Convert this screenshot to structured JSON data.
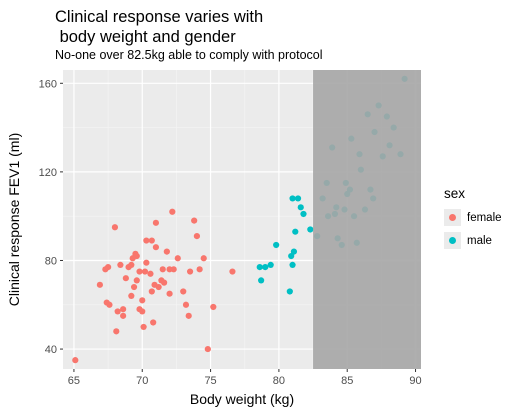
{
  "chart_data": {
    "type": "scatter",
    "title_lines": [
      "Clinical response varies with",
      " body weight and gender"
    ],
    "subtitle": "No-one over 82.5kg able to comply with protocol",
    "xlabel": "Body weight (kg)",
    "ylabel": "Clinical response FEV1 (ml)",
    "xlim": [
      64.2,
      90.4
    ],
    "ylim": [
      31,
      166
    ],
    "xticks": [
      65,
      70,
      75,
      80,
      85,
      90
    ],
    "yticks": [
      40,
      80,
      120,
      160
    ],
    "grid": true,
    "shaded_region": {
      "x_from": 82.5,
      "description_visible": false
    },
    "legend": {
      "title": "sex",
      "position": "right",
      "entries": [
        {
          "label": "female",
          "color": "#F8766D"
        },
        {
          "label": "male",
          "color": "#00BFC4"
        }
      ]
    },
    "series": [
      {
        "name": "female",
        "color": "#F8766D",
        "points": [
          [
            65.1,
            35
          ],
          [
            66.9,
            69
          ],
          [
            67.3,
            76
          ],
          [
            67.5,
            77
          ],
          [
            67.4,
            61
          ],
          [
            67.6,
            60
          ],
          [
            68.0,
            95
          ],
          [
            68.1,
            48
          ],
          [
            68.2,
            57
          ],
          [
            68.6,
            58
          ],
          [
            68.4,
            78
          ],
          [
            68.6,
            55
          ],
          [
            68.8,
            72
          ],
          [
            69.0,
            77
          ],
          [
            69.2,
            78
          ],
          [
            69.3,
            81
          ],
          [
            69.5,
            83
          ],
          [
            69.6,
            82
          ],
          [
            69.2,
            64
          ],
          [
            69.4,
            68
          ],
          [
            69.6,
            71
          ],
          [
            69.8,
            58
          ],
          [
            70.0,
            57
          ],
          [
            70.1,
            50
          ],
          [
            70.0,
            62
          ],
          [
            70.2,
            75
          ],
          [
            69.8,
            75
          ],
          [
            70.3,
            79
          ],
          [
            70.3,
            89
          ],
          [
            70.7,
            89
          ],
          [
            70.6,
            74
          ],
          [
            70.7,
            66
          ],
          [
            70.9,
            69
          ],
          [
            70.8,
            52
          ],
          [
            71.0,
            97
          ],
          [
            71.0,
            86
          ],
          [
            71.2,
            68
          ],
          [
            71.4,
            71
          ],
          [
            71.5,
            76
          ],
          [
            71.6,
            70
          ],
          [
            71.8,
            84
          ],
          [
            72.0,
            76
          ],
          [
            72.3,
            76
          ],
          [
            72.2,
            102
          ],
          [
            72.0,
            65
          ],
          [
            72.6,
            81
          ],
          [
            73.0,
            66
          ],
          [
            73.2,
            60
          ],
          [
            73.4,
            55
          ],
          [
            73.5,
            75
          ],
          [
            73.8,
            98
          ],
          [
            74.0,
            91
          ],
          [
            74.2,
            76
          ],
          [
            74.5,
            81
          ],
          [
            74.8,
            40
          ],
          [
            75.2,
            59
          ],
          [
            76.6,
            75
          ]
        ]
      },
      {
        "name": "male",
        "color": "#00BFC4",
        "points": [
          [
            78.6,
            77
          ],
          [
            78.7,
            71
          ],
          [
            79.0,
            77
          ],
          [
            79.4,
            78
          ],
          [
            79.8,
            87
          ],
          [
            80.8,
            66
          ],
          [
            80.9,
            82
          ],
          [
            81.0,
            78
          ],
          [
            81.1,
            84
          ],
          [
            81.0,
            108
          ],
          [
            81.2,
            93
          ],
          [
            81.4,
            108
          ],
          [
            81.6,
            104
          ],
          [
            81.8,
            101
          ],
          [
            82.3,
            94
          ],
          [
            82.8,
            91
          ],
          [
            83.2,
            108
          ],
          [
            83.5,
            115
          ],
          [
            83.6,
            100
          ],
          [
            83.9,
            131
          ],
          [
            84.1,
            101
          ],
          [
            84.2,
            104
          ],
          [
            84.3,
            90
          ],
          [
            84.6,
            87
          ],
          [
            84.8,
            103
          ],
          [
            84.9,
            115
          ],
          [
            85.0,
            110
          ],
          [
            85.2,
            112
          ],
          [
            85.3,
            135
          ],
          [
            85.5,
            100
          ],
          [
            85.7,
            88
          ],
          [
            85.9,
            128
          ],
          [
            86.0,
            121
          ],
          [
            86.3,
            103
          ],
          [
            86.5,
            146
          ],
          [
            86.7,
            112
          ],
          [
            86.9,
            108
          ],
          [
            87.0,
            138
          ],
          [
            87.3,
            150
          ],
          [
            87.6,
            127
          ],
          [
            87.9,
            145
          ],
          [
            88.1,
            132
          ],
          [
            88.4,
            140
          ],
          [
            88.9,
            128
          ],
          [
            89.2,
            162
          ]
        ]
      }
    ]
  }
}
